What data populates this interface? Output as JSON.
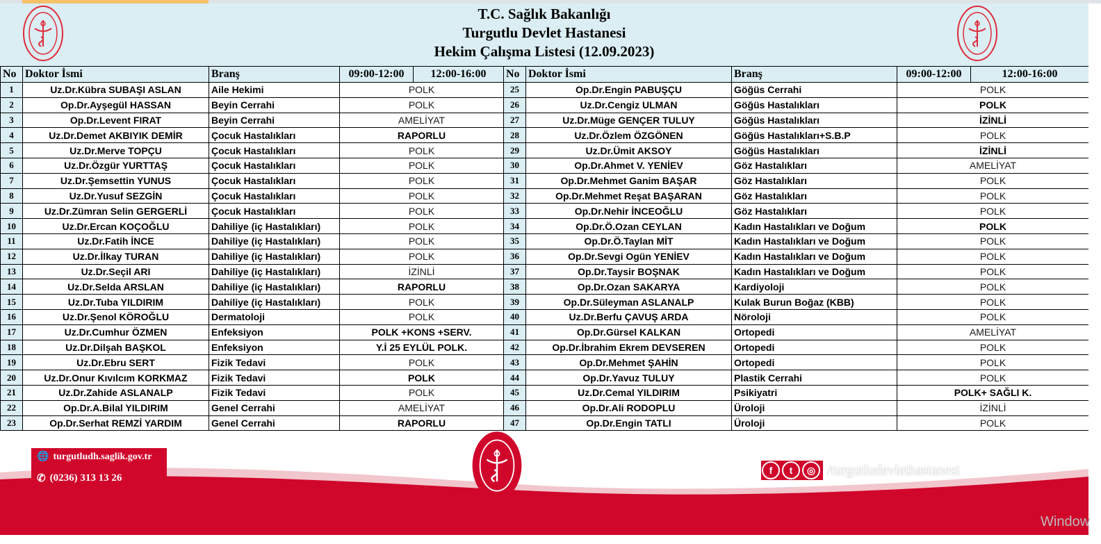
{
  "header": {
    "line1": "T.C. Sağlık Bakanlığı",
    "line2": "Turgutlu Devlet Hastanesi",
    "line3": "Hekim Çalışma Listesi (12.09.2023)"
  },
  "columns": {
    "no": "No",
    "doctor": "Doktor İsmi",
    "branch": "Branş",
    "morning": "09:00-12:00",
    "afternoon": "12:00-16:00"
  },
  "colors": {
    "accent_red": "#d0062b",
    "header_bg": "#daeef3"
  },
  "left_rows": [
    {
      "no": "1",
      "name": "Uz.Dr.Kübra SUBAŞI ASLAN",
      "branch": "Aile Hekimi",
      "status": "POLK",
      "bold": false
    },
    {
      "no": "2",
      "name": "Op.Dr.Ayşegül HASSAN",
      "branch": "Beyin Cerrahi",
      "status": "POLK",
      "bold": false
    },
    {
      "no": "3",
      "name": "Op.Dr.Levent FIRAT",
      "branch": "Beyin Cerrahi",
      "status": "AMELİYAT",
      "bold": false
    },
    {
      "no": "4",
      "name": "Uz.Dr.Demet AKBIYIK DEMİR",
      "branch": "Çocuk Hastalıkları",
      "status": "RAPORLU",
      "bold": true
    },
    {
      "no": "5",
      "name": "Uz.Dr.Merve TOPÇU",
      "branch": "Çocuk Hastalıkları",
      "status": "POLK",
      "bold": false
    },
    {
      "no": "6",
      "name": "Uz.Dr.Özgür YURTTAŞ",
      "branch": "Çocuk Hastalıkları",
      "status": "POLK",
      "bold": false
    },
    {
      "no": "7",
      "name": "Uz.Dr.Şemsettin YUNUS",
      "branch": "Çocuk Hastalıkları",
      "status": "POLK",
      "bold": false
    },
    {
      "no": "8",
      "name": "Uz.Dr.Yusuf  SEZGİN",
      "branch": "Çocuk Hastalıkları",
      "status": "POLK",
      "bold": false
    },
    {
      "no": "9",
      "name": "Uz.Dr.Zümran Selin GERGERLİ",
      "branch": "Çocuk Hastalıkları",
      "status": "POLK",
      "bold": false
    },
    {
      "no": "10",
      "name": "Uz.Dr.Ercan KOÇOĞLU",
      "branch": "Dahiliye (iç Hastalıkları)",
      "status": "POLK",
      "bold": false
    },
    {
      "no": "11",
      "name": "Uz.Dr.Fatih İNCE",
      "branch": "Dahiliye (iç Hastalıkları)",
      "status": "POLK",
      "bold": false
    },
    {
      "no": "12",
      "name": "Uz.Dr.İlkay TURAN",
      "branch": "Dahiliye (iç Hastalıkları)",
      "status": "POLK",
      "bold": false
    },
    {
      "no": "13",
      "name": "Uz.Dr.Seçil ARI",
      "branch": "Dahiliye (iç Hastalıkları)",
      "status": "İZİNLİ",
      "bold": false
    },
    {
      "no": "14",
      "name": "Uz.Dr.Selda ARSLAN",
      "branch": "Dahiliye (iç Hastalıkları)",
      "status": "RAPORLU",
      "bold": true
    },
    {
      "no": "15",
      "name": "Uz.Dr.Tuba YILDIRIM",
      "branch": "Dahiliye (iç Hastalıkları)",
      "status": "POLK",
      "bold": false
    },
    {
      "no": "16",
      "name": "Uz.Dr.Şenol KÖROĞLU",
      "branch": "Dermatoloji",
      "status": "POLK",
      "bold": false
    },
    {
      "no": "17",
      "name": "Uz.Dr.Cumhur ÖZMEN",
      "branch": "Enfeksiyon",
      "status": "POLK +KONS +SERV.",
      "bold": true
    },
    {
      "no": "18",
      "name": "Uz.Dr.Dilşah BAŞKOL",
      "branch": "Enfeksiyon",
      "status": "Y.İ 25 EYLÜL POLK.",
      "bold": true
    },
    {
      "no": "19",
      "name": "Uz.Dr.Ebru SERT",
      "branch": "Fizik Tedavi",
      "status": "POLK",
      "bold": false
    },
    {
      "no": "20",
      "name": "Uz.Dr.Onur Kıvılcım KORKMAZ",
      "branch": "Fizik Tedavi",
      "status": "POLK",
      "bold": true
    },
    {
      "no": "21",
      "name": "Uz.Dr.Zahide ASLANALP",
      "branch": "Fizik Tedavi",
      "status": "POLK",
      "bold": false
    },
    {
      "no": "22",
      "name": "Op.Dr.A.Bilal YILDIRIM",
      "branch": "Genel Cerrahi",
      "status": "AMELİYAT",
      "bold": false
    },
    {
      "no": "23",
      "name": "Op.Dr.Serhat REMZİ YARDIM",
      "branch": "Genel Cerrahi",
      "status": "RAPORLU",
      "bold": true
    }
  ],
  "right_rows": [
    {
      "no": "25",
      "name": "Op.Dr.Engin PABUŞÇU",
      "branch": "Göğüs Cerrahi",
      "status": "POLK",
      "bold": false
    },
    {
      "no": "26",
      "name": "Uz.Dr.Cengiz ULMAN",
      "branch": "Göğüs Hastalıkları",
      "status": "POLK",
      "bold": true
    },
    {
      "no": "27",
      "name": "Uz.Dr.Müge GENÇER TULUY",
      "branch": "Göğüs Hastalıkları",
      "status": "İZİNLİ",
      "bold": true
    },
    {
      "no": "28",
      "name": "Uz.Dr.Özlem ÖZGÖNEN",
      "branch": "Göğüs Hastalıkları+S.B.P",
      "status": "POLK",
      "bold": false
    },
    {
      "no": "29",
      "name": "Uz.Dr.Ümit AKSOY",
      "branch": "Göğüs Hastalıkları",
      "status": "İZİNLİ",
      "bold": true
    },
    {
      "no": "30",
      "name": "Op.Dr.Ahmet V. YENİEV",
      "branch": "Göz Hastalıkları",
      "status": "AMELİYAT",
      "bold": false
    },
    {
      "no": "31",
      "name": "Op.Dr.Mehmet Ganim BAŞAR",
      "branch": "Göz Hastalıkları",
      "status": "POLK",
      "bold": false
    },
    {
      "no": "32",
      "name": "Op.Dr.Mehmet Reşat BAŞARAN",
      "branch": "Göz Hastalıkları",
      "status": "POLK",
      "bold": false
    },
    {
      "no": "33",
      "name": "Op.Dr.Nehir İNCEOĞLU",
      "branch": "Göz Hastalıkları",
      "status": "POLK",
      "bold": false
    },
    {
      "no": "34",
      "name": "Op.Dr.Ö.Ozan CEYLAN",
      "branch": "Kadın Hastalıkları ve Doğum",
      "status": "POLK",
      "bold": true
    },
    {
      "no": "35",
      "name": "Op.Dr.Ö.Taylan MİT",
      "branch": "Kadın Hastalıkları ve Doğum",
      "status": "POLK",
      "bold": false
    },
    {
      "no": "36",
      "name": "Op.Dr.Sevgi Ogün YENİEV",
      "branch": "Kadın Hastalıkları ve Doğum",
      "status": "POLK",
      "bold": false
    },
    {
      "no": "37",
      "name": "Op.Dr.Taysir BOŞNAK",
      "branch": "Kadın Hastalıkları ve Doğum",
      "status": "POLK",
      "bold": false
    },
    {
      "no": "38",
      "name": "Op.Dr.Ozan SAKARYA",
      "branch": "Kardiyoloji",
      "status": "POLK",
      "bold": false
    },
    {
      "no": "39",
      "name": "Op.Dr.Süleyman ASLANALP",
      "branch": "Kulak Burun Boğaz (KBB)",
      "status": "POLK",
      "bold": false
    },
    {
      "no": "40",
      "name": "Uz.Dr.Berfu ÇAVUŞ ARDA",
      "branch": "Nöroloji",
      "status": "POLK",
      "bold": false
    },
    {
      "no": "41",
      "name": "Op.Dr.Gürsel KALKAN",
      "branch": "Ortopedi",
      "status": "AMELİYAT",
      "bold": false
    },
    {
      "no": "42",
      "name": "Op.Dr.İbrahim Ekrem DEVSEREN",
      "branch": "Ortopedi",
      "status": "POLK",
      "bold": false
    },
    {
      "no": "43",
      "name": "Op.Dr.Mehmet ŞAHİN",
      "branch": "Ortopedi",
      "status": "POLK",
      "bold": false
    },
    {
      "no": "44",
      "name": "Op.Dr.Yavuz TULUY",
      "branch": "Plastik Cerrahi",
      "status": "POLK",
      "bold": false
    },
    {
      "no": "45",
      "name": "Uz.Dr.Cemal YILDIRIM",
      "branch": "Psikiyatri",
      "status": "POLK+ SAĞLI K.",
      "bold": true
    },
    {
      "no": "46",
      "name": "Op.Dr.Ali RODOPLU",
      "branch": "Üroloji",
      "status": "İZİNLİ",
      "bold": false
    },
    {
      "no": "47",
      "name": "Op.Dr.Engin TATLI",
      "branch": "Üroloji",
      "status": "POLK",
      "bold": false
    }
  ],
  "footer": {
    "website": "turgutludh.saglik.gov.tr",
    "phone": "(0236) 313 13 26",
    "social_handle": "/turgutludevlethastanesi",
    "social_icons": [
      "facebook-icon",
      "twitter-icon",
      "instagram-icon"
    ]
  },
  "watermark": "Window"
}
